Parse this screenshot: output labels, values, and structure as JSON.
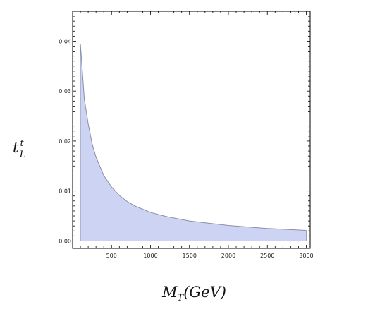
{
  "chart_data": {
    "type": "area",
    "title": "",
    "xlabel_main": "M",
    "xlabel_sub": "T",
    "xlabel_rest": "(GeV)",
    "ylabel_main": "t",
    "ylabel_sup": "t",
    "ylabel_sub": "L",
    "xlim": [
      0,
      3050
    ],
    "ylim": [
      -0.0015,
      0.046
    ],
    "xticks": [
      500,
      1000,
      1500,
      2000,
      2500,
      3000
    ],
    "yticks": [
      0.0,
      0.01,
      0.02,
      0.03,
      0.04
    ],
    "ytick_labels": [
      "0.00",
      "0.01",
      "0.02",
      "0.03",
      "0.04"
    ],
    "grid": false,
    "series": [
      {
        "fill_color": "#cdd3f3",
        "line_color": "#8a8fa8",
        "x": [
          100,
          150,
          200,
          250,
          300,
          400,
          500,
          600,
          700,
          800,
          1000,
          1200,
          1500,
          2000,
          2500,
          3000
        ],
        "y_upper": [
          0.0395,
          0.0285,
          0.0235,
          0.0195,
          0.0168,
          0.0131,
          0.0108,
          0.0091,
          0.0079,
          0.007,
          0.0057,
          0.0049,
          0.004,
          0.0031,
          0.0025,
          0.0021
        ],
        "y_lower": [
          0,
          0,
          0,
          0,
          0,
          0,
          0,
          0,
          0,
          0,
          0,
          0,
          0,
          0,
          0,
          0
        ]
      }
    ]
  }
}
